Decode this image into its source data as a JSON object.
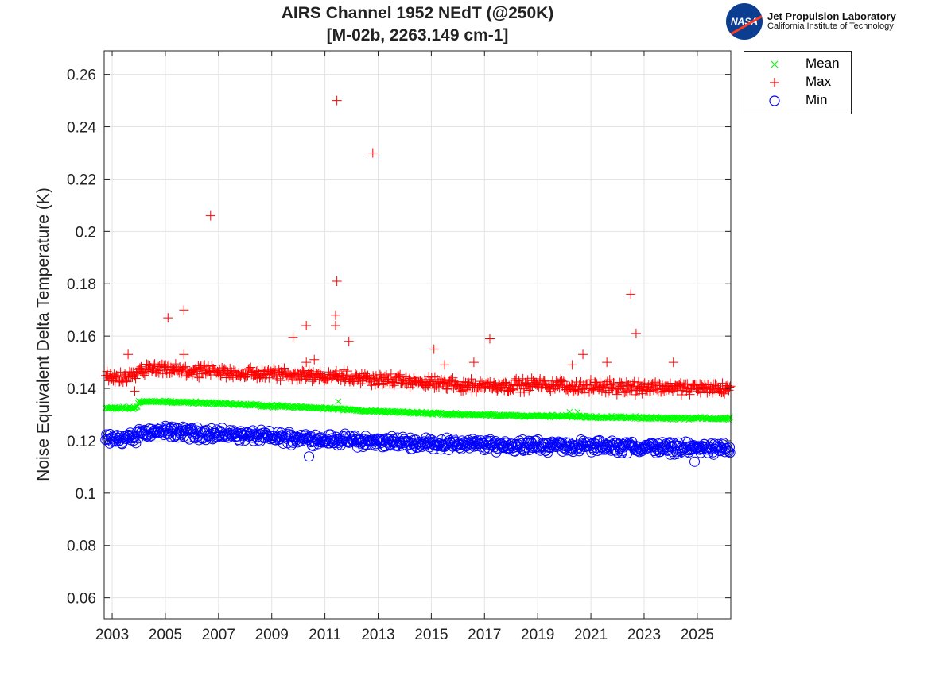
{
  "header": {
    "title_line1": "AIRS Channel 1952 NEdT (@250K)",
    "title_line2": "[M-02b, 2263.149 cm-1]"
  },
  "logo": {
    "line1": "Jet Propulsion Laboratory",
    "line2": "California Institute of Technology",
    "badge": "NASA"
  },
  "chart_data": {
    "type": "scatter",
    "title": "AIRS Channel 1952 NEdT (@250K) [M-02b, 2263.149 cm-1]",
    "xlabel": "",
    "ylabel": "Noise Equivalent Delta Temperature (K)",
    "xlim": [
      2002.7,
      2026.26
    ],
    "ylim": [
      0.052,
      0.269
    ],
    "grid": true,
    "legend_placement": "outside-top-right",
    "xticks": [
      2003,
      2005,
      2007,
      2009,
      2011,
      2013,
      2015,
      2017,
      2019,
      2021,
      2023,
      2025
    ],
    "xtick_labels": [
      "2003",
      "2005",
      "2007",
      "2009",
      "2011",
      "2013",
      "2015",
      "2017",
      "2019",
      "2021",
      "2023",
      "2025"
    ],
    "yticks": [
      0.06,
      0.08,
      0.1,
      0.12,
      0.14,
      0.16,
      0.18,
      0.2,
      0.22,
      0.24,
      0.26
    ],
    "ytick_labels": [
      "0.06",
      "0.08",
      "0.1",
      "0.12",
      "0.14",
      "0.16",
      "0.18",
      "0.2",
      "0.22",
      "0.24",
      "0.26"
    ],
    "series": [
      {
        "name": "Mean",
        "color": "#00ff00",
        "marker": "x",
        "spread": 0.0006,
        "trend_x": [
          2002.75,
          2003.9,
          2004.0,
          2005,
          2007,
          2009,
          2011,
          2012,
          2013,
          2015,
          2017,
          2019,
          2021,
          2023,
          2026.25
        ],
        "trend_y": [
          0.1325,
          0.1325,
          0.1348,
          0.135,
          0.1343,
          0.1333,
          0.1325,
          0.1318,
          0.1312,
          0.1305,
          0.1298,
          0.1295,
          0.1292,
          0.1288,
          0.1285
        ],
        "outliers": [
          [
            2011.5,
            0.135
          ],
          [
            2020.2,
            0.131
          ],
          [
            2020.5,
            0.131
          ]
        ]
      },
      {
        "name": "Max",
        "color": "#ff0000",
        "marker": "+",
        "spread": 0.003,
        "trend_x": [
          2002.75,
          2003.9,
          2004.0,
          2005,
          2007,
          2009,
          2011,
          2013,
          2015,
          2017,
          2019,
          2021,
          2023,
          2026.25
        ],
        "trend_y": [
          0.144,
          0.144,
          0.147,
          0.147,
          0.146,
          0.1455,
          0.145,
          0.1435,
          0.142,
          0.141,
          0.1415,
          0.1405,
          0.1405,
          0.14
        ],
        "outliers": [
          [
            2003.6,
            0.153
          ],
          [
            2003.85,
            0.139
          ],
          [
            2005.1,
            0.167
          ],
          [
            2005.7,
            0.17
          ],
          [
            2005.7,
            0.153
          ],
          [
            2006.7,
            0.206
          ],
          [
            2009.8,
            0.1595
          ],
          [
            2010.3,
            0.164
          ],
          [
            2010.3,
            0.15
          ],
          [
            2010.6,
            0.151
          ],
          [
            2011.45,
            0.25
          ],
          [
            2011.45,
            0.181
          ],
          [
            2011.4,
            0.168
          ],
          [
            2011.4,
            0.164
          ],
          [
            2011.9,
            0.158
          ],
          [
            2012.8,
            0.23
          ],
          [
            2015.1,
            0.155
          ],
          [
            2015.5,
            0.149
          ],
          [
            2016.6,
            0.15
          ],
          [
            2017.2,
            0.159
          ],
          [
            2020.3,
            0.149
          ],
          [
            2020.7,
            0.153
          ],
          [
            2021.6,
            0.15
          ],
          [
            2022.5,
            0.176
          ],
          [
            2022.7,
            0.161
          ],
          [
            2024.1,
            0.15
          ]
        ]
      },
      {
        "name": "Min",
        "color": "#0000ff",
        "marker": "o",
        "spread": 0.0028,
        "trend_x": [
          2002.75,
          2003.9,
          2004.0,
          2005,
          2007,
          2009,
          2011,
          2013,
          2015,
          2017,
          2019,
          2021,
          2023,
          2026.25
        ],
        "trend_y": [
          0.1205,
          0.121,
          0.1235,
          0.1235,
          0.1225,
          0.1215,
          0.1205,
          0.1195,
          0.119,
          0.1185,
          0.118,
          0.118,
          0.1175,
          0.117
        ],
        "outliers": [
          [
            2010.4,
            0.114
          ],
          [
            2024.9,
            0.112
          ]
        ]
      }
    ]
  }
}
